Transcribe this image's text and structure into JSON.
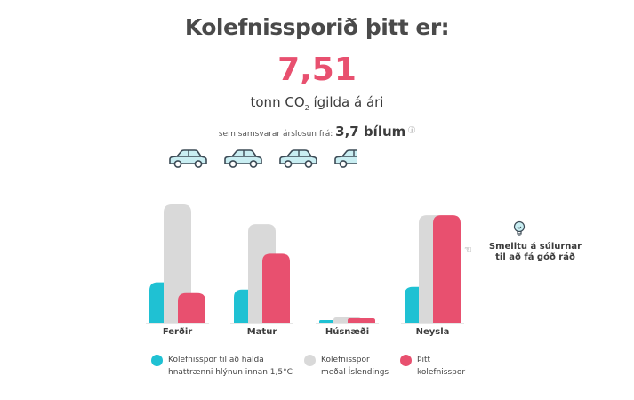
{
  "header": {
    "title": "Kolefnissporið þitt er:",
    "value": "7,51",
    "unit_prefix": "tonn CO",
    "unit_sub": "2",
    "unit_suffix": " ígilda á ári",
    "compare_prefix": "sem samsvarar árslosun frá: ",
    "compare_value": "3,7 bílum",
    "info_icon": "info-icon"
  },
  "cars": {
    "count_full": 3,
    "partial": 0.7,
    "icon": "car-icon",
    "color": "#c9eef2",
    "stroke": "#3c4a55"
  },
  "tip": {
    "text_line1": "Smelltu á súlurnar",
    "text_line2": "til að fá góð ráð",
    "icon": "lightbulb-icon",
    "pointer_icon": "pointing-hand-icon"
  },
  "colors": {
    "target": "#1fc1d3",
    "average": "#d9d9d9",
    "yours": "#e8506f",
    "axis": "#d6d6d6"
  },
  "chart_data": {
    "type": "bar",
    "categories": [
      "Ferðir",
      "Matur",
      "Húsnæði",
      "Neysla"
    ],
    "series": [
      {
        "name": "Kolefnisspor til að halda hnattrænni hlýnun innan 1,5°C",
        "values": [
          0.45,
          0.37,
          0.03,
          0.4
        ]
      },
      {
        "name": "Kolefnisspor meðal Íslendings",
        "values": [
          1.32,
          1.1,
          0.06,
          1.2
        ]
      },
      {
        "name": "Þitt kolefnisspor",
        "values": [
          0.33,
          0.77,
          0.05,
          1.2
        ]
      }
    ],
    "ylim": [
      0,
      1.35
    ]
  },
  "legend": [
    {
      "line1": "Kolefnisspor til að halda",
      "line2": "hnattrænni hlýnun innan 1,5°C",
      "color": "#1fc1d3"
    },
    {
      "line1": "Kolefnisspor",
      "line2": "meðal Íslendings",
      "color": "#d9d9d9"
    },
    {
      "line1": "Þitt",
      "line2": "kolefnisspor",
      "color": "#e8506f"
    }
  ]
}
